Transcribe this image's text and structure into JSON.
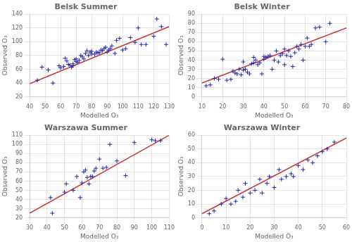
{
  "chart_data": [
    {
      "type": "scatter",
      "title": "Belsk Summer",
      "xlabel": "Modelled O₃",
      "ylabel": "Observed O₃",
      "xlim": [
        40,
        130
      ],
      "ylim": [
        20,
        140
      ],
      "xticks": [
        40,
        50,
        60,
        70,
        80,
        90,
        100,
        110,
        120,
        130
      ],
      "yticks": [
        20,
        40,
        60,
        80,
        100,
        120,
        140
      ],
      "grid": true,
      "series": [
        {
          "type": "line",
          "color": "#cc3333",
          "line_style": "solid",
          "x": [
            40,
            130
          ],
          "values": [
            39,
            122
          ]
        },
        {
          "type": "scatter",
          "color": "#2222aa",
          "marker": "plus",
          "x": [
            45,
            48,
            52,
            55,
            59,
            60,
            62,
            63,
            64,
            65,
            66,
            67,
            68,
            68,
            69,
            70,
            70,
            71,
            72,
            73,
            74,
            75,
            76,
            77,
            78,
            79,
            80,
            80,
            82,
            83,
            84,
            85,
            86,
            87,
            88,
            89,
            90,
            91,
            92,
            93,
            95,
            96,
            98,
            100,
            102,
            105,
            108,
            110,
            112,
            115,
            120,
            122,
            125,
            128
          ],
          "values": [
            44,
            63,
            59,
            40,
            65,
            62,
            64,
            76,
            72,
            67,
            66,
            63,
            65,
            68,
            74,
            75,
            71,
            70,
            73,
            80,
            78,
            75,
            83,
            87,
            80,
            85,
            82,
            86,
            82,
            85,
            84,
            84,
            88,
            87,
            90,
            92,
            85,
            88,
            90,
            94,
            83,
            102,
            105,
            88,
            90,
            106,
            99,
            120,
            96,
            96,
            108,
            133,
            122,
            96
          ]
        }
      ]
    },
    {
      "type": "scatter",
      "title": "Belsk Winter",
      "xlabel": "Modelled O₃",
      "ylabel": "Observed O₃",
      "xlim": [
        10,
        80
      ],
      "ylim": [
        0,
        90
      ],
      "xticks": [
        10,
        20,
        30,
        40,
        50,
        60,
        70,
        80
      ],
      "yticks": [
        0,
        10,
        20,
        30,
        40,
        50,
        60,
        70,
        80,
        90
      ],
      "grid": true,
      "series": [
        {
          "type": "line",
          "color": "#cc3333",
          "line_style": "solid",
          "x": [
            10,
            80
          ],
          "values": [
            15,
            75
          ]
        },
        {
          "type": "scatter",
          "color": "#2222aa",
          "marker": "plus",
          "x": [
            12,
            14,
            16,
            18,
            20,
            22,
            24,
            25,
            26,
            27,
            28,
            29,
            30,
            30,
            31,
            32,
            33,
            34,
            35,
            35,
            36,
            37,
            38,
            39,
            40,
            40,
            41,
            42,
            43,
            44,
            45,
            46,
            47,
            48,
            49,
            50,
            50,
            51,
            52,
            53,
            54,
            55,
            56,
            57,
            58,
            59,
            60,
            61,
            62,
            63,
            65,
            67,
            70,
            72
          ],
          "values": [
            12,
            13,
            20,
            19,
            41,
            18,
            19,
            28,
            26,
            25,
            30,
            24,
            29,
            38,
            30,
            27,
            25,
            36,
            37,
            43,
            40,
            35,
            37,
            25,
            44,
            41,
            43,
            44,
            45,
            30,
            40,
            50,
            38,
            45,
            47,
            35,
            52,
            45,
            50,
            44,
            33,
            48,
            55,
            52,
            57,
            40,
            55,
            64,
            55,
            57,
            75,
            76,
            60,
            80
          ]
        }
      ]
    },
    {
      "type": "scatter",
      "title": "Warszawa Summer",
      "xlabel": "Modelled O₃",
      "ylabel": "Observed O₃",
      "xlim": [
        30,
        110
      ],
      "ylim": [
        20,
        110
      ],
      "xticks": [
        30,
        40,
        50,
        60,
        70,
        80,
        90,
        100,
        110
      ],
      "yticks": [
        20,
        30,
        40,
        50,
        60,
        70,
        80,
        90,
        100,
        110
      ],
      "grid": true,
      "series": [
        {
          "type": "line",
          "color": "#cc3333",
          "line_style": "solid",
          "x": [
            30,
            110
          ],
          "values": [
            25,
            110
          ]
        },
        {
          "type": "scatter",
          "color": "#2222aa",
          "marker": "plus",
          "x": [
            42,
            43,
            50,
            51,
            55,
            57,
            59,
            60,
            61,
            62,
            63,
            64,
            65,
            66,
            67,
            68,
            70,
            72,
            74,
            76,
            80,
            85,
            90,
            100,
            102,
            105
          ],
          "values": [
            42,
            25,
            48,
            57,
            50,
            65,
            42,
            58,
            70,
            72,
            64,
            57,
            65,
            65,
            71,
            74,
            84,
            74,
            75,
            100,
            82,
            66,
            102,
            105,
            104,
            104
          ]
        }
      ]
    },
    {
      "type": "scatter",
      "title": "Warszawa Winter",
      "xlabel": "Modelled O₃",
      "ylabel": "Observed O₃",
      "xlim": [
        0,
        60
      ],
      "ylim": [
        0,
        60
      ],
      "xticks": [
        0,
        10,
        20,
        30,
        40,
        50,
        60
      ],
      "yticks": [
        0,
        10,
        20,
        30,
        40,
        50,
        60
      ],
      "grid": true,
      "series": [
        {
          "type": "line",
          "color": "#cc3333",
          "line_style": "solid",
          "x": [
            0,
            60
          ],
          "values": [
            3,
            58
          ]
        },
        {
          "type": "scatter",
          "color": "#2222aa",
          "marker": "plus",
          "x": [
            3,
            5,
            8,
            10,
            12,
            14,
            15,
            17,
            18,
            20,
            22,
            24,
            25,
            27,
            28,
            30,
            32,
            33,
            35,
            37,
            38,
            40,
            42,
            44,
            46,
            48,
            50,
            52,
            55
          ],
          "values": [
            3,
            5,
            10,
            14,
            10,
            12,
            20,
            15,
            25,
            18,
            20,
            28,
            18,
            25,
            30,
            22,
            35,
            28,
            30,
            32,
            30,
            38,
            35,
            42,
            40,
            45,
            48,
            50,
            55
          ]
        }
      ]
    }
  ]
}
